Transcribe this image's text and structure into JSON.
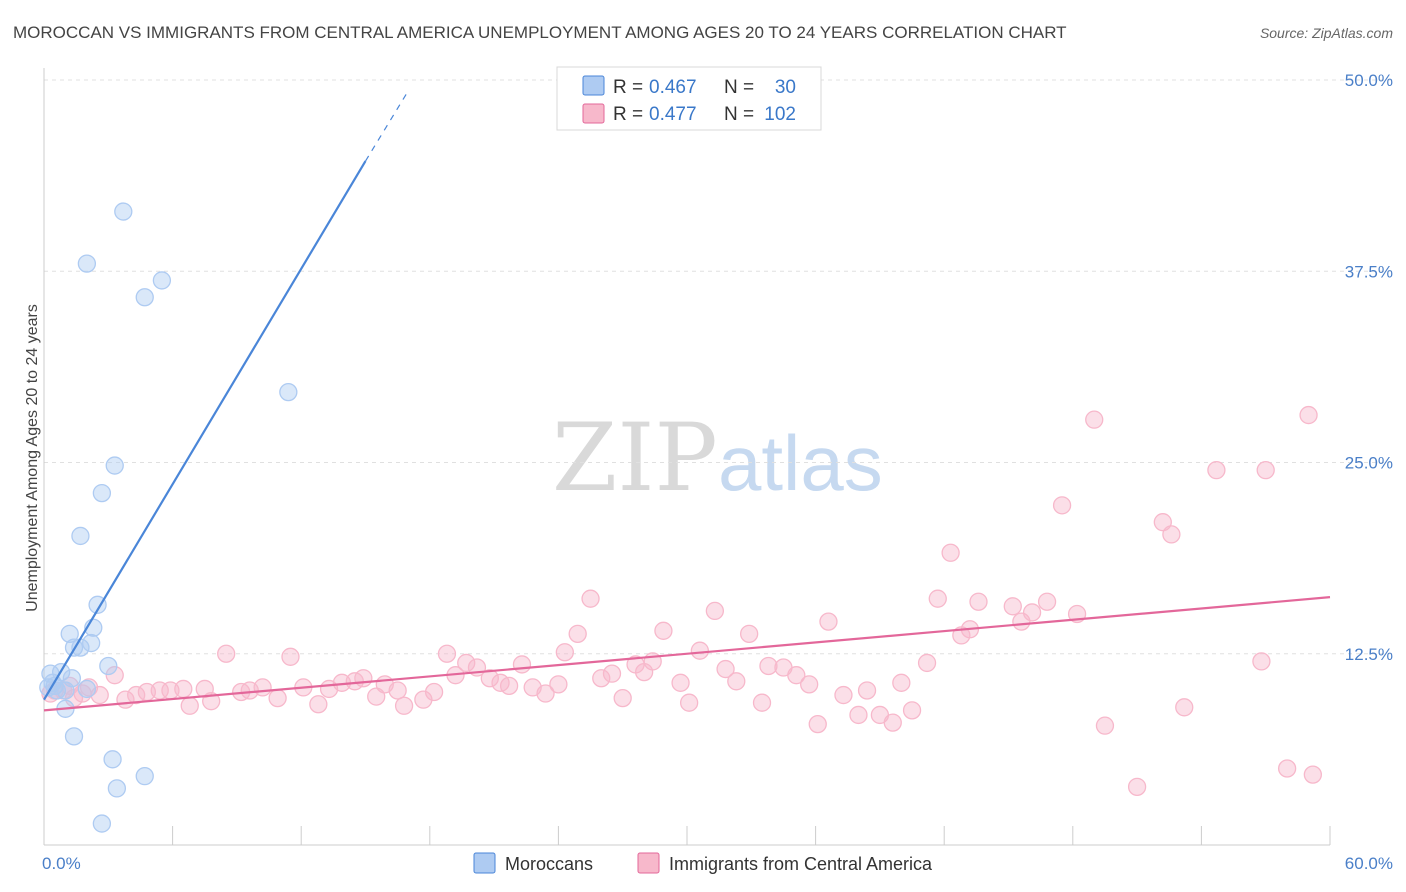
{
  "title": "MOROCCAN VS IMMIGRANTS FROM CENTRAL AMERICA UNEMPLOYMENT AMONG AGES 20 TO 24 YEARS CORRELATION CHART",
  "source": "Source: ZipAtlas.com",
  "watermark": {
    "zip": "ZIP",
    "atlas": "atlas"
  },
  "legend_top": {
    "rows": [
      {
        "r_label": "R = ",
        "r_value": "0.467",
        "n_label": "N = ",
        "n_value": "30",
        "color": "#aecbf2"
      },
      {
        "r_label": "R = ",
        "r_value": "0.477",
        "n_label": "N = ",
        "n_value": "102",
        "color": "#f7b8cb"
      }
    ]
  },
  "legend_bottom": {
    "items": [
      {
        "label": "Moroccans",
        "color": "#aecbf2"
      },
      {
        "label": "Immigrants from Central America",
        "color": "#f7b8cb"
      }
    ]
  },
  "chart_data": {
    "type": "scatter",
    "title": "MOROCCAN VS IMMIGRANTS FROM CENTRAL AMERICA UNEMPLOYMENT AMONG AGES 20 TO 24 YEARS CORRELATION CHART",
    "xlabel": "",
    "ylabel": "Unemployment Among Ages 20 to 24 years",
    "xlim": [
      0,
      60
    ],
    "ylim": [
      0,
      50
    ],
    "x_tick_labels": [
      {
        "value": 0,
        "label": "0.0%"
      },
      {
        "value": 60,
        "label": "60.0%"
      }
    ],
    "y_tick_labels": [
      {
        "value": 12.5,
        "label": "12.5%"
      },
      {
        "value": 25,
        "label": "25.0%"
      },
      {
        "value": 37.5,
        "label": "37.5%"
      },
      {
        "value": 50,
        "label": "50.0%"
      }
    ],
    "series": [
      {
        "name": "Moroccans",
        "color": "#4a86d8",
        "fill": "#aecbf2",
        "points": [
          [
            0.2,
            10.3
          ],
          [
            0.3,
            11.2
          ],
          [
            0.4,
            10.6
          ],
          [
            0.5,
            10.4
          ],
          [
            0.6,
            10.1
          ],
          [
            0.8,
            11.3
          ],
          [
            1.0,
            10.1
          ],
          [
            1.0,
            8.9
          ],
          [
            1.2,
            13.8
          ],
          [
            1.3,
            10.9
          ],
          [
            1.4,
            12.9
          ],
          [
            1.4,
            7.1
          ],
          [
            1.7,
            20.2
          ],
          [
            1.7,
            12.9
          ],
          [
            2.0,
            38.0
          ],
          [
            2.0,
            10.2
          ],
          [
            2.2,
            13.2
          ],
          [
            2.3,
            14.2
          ],
          [
            2.5,
            15.7
          ],
          [
            2.7,
            1.4
          ],
          [
            2.7,
            23.0
          ],
          [
            3.0,
            11.7
          ],
          [
            3.2,
            5.6
          ],
          [
            3.3,
            24.8
          ],
          [
            3.4,
            3.7
          ],
          [
            3.7,
            41.4
          ],
          [
            4.7,
            4.5
          ],
          [
            4.7,
            35.8
          ],
          [
            5.5,
            36.9
          ],
          [
            11.4,
            29.6
          ]
        ],
        "trend": {
          "x0": 0,
          "y0": 9.5,
          "x1": 15.0,
          "y1": 44.7,
          "dash_to_x": 17.0,
          "dash_to_y": 49.3
        }
      },
      {
        "name": "Immigrants from Central America",
        "color": "#e3679a",
        "fill": "#f7b8cb",
        "points": [
          [
            0.3,
            9.9
          ],
          [
            0.5,
            10.1
          ],
          [
            0.9,
            10.1
          ],
          [
            1.2,
            10.4
          ],
          [
            1.4,
            9.6
          ],
          [
            1.8,
            9.9
          ],
          [
            2.1,
            10.3
          ],
          [
            2.6,
            9.8
          ],
          [
            3.3,
            11.1
          ],
          [
            3.8,
            9.5
          ],
          [
            4.3,
            9.8
          ],
          [
            4.8,
            10.0
          ],
          [
            5.4,
            10.1
          ],
          [
            5.9,
            10.1
          ],
          [
            6.5,
            10.2
          ],
          [
            6.8,
            9.1
          ],
          [
            7.5,
            10.2
          ],
          [
            7.8,
            9.4
          ],
          [
            8.5,
            12.5
          ],
          [
            9.2,
            10.0
          ],
          [
            9.6,
            10.1
          ],
          [
            10.2,
            10.3
          ],
          [
            10.9,
            9.6
          ],
          [
            11.5,
            12.3
          ],
          [
            12.1,
            10.3
          ],
          [
            12.8,
            9.2
          ],
          [
            13.3,
            10.2
          ],
          [
            13.9,
            10.6
          ],
          [
            14.5,
            10.7
          ],
          [
            14.9,
            10.9
          ],
          [
            15.5,
            9.7
          ],
          [
            15.9,
            10.5
          ],
          [
            16.5,
            10.1
          ],
          [
            16.8,
            9.1
          ],
          [
            17.7,
            9.5
          ],
          [
            18.2,
            10.0
          ],
          [
            18.8,
            12.5
          ],
          [
            19.2,
            11.1
          ],
          [
            19.7,
            11.9
          ],
          [
            20.2,
            11.6
          ],
          [
            20.8,
            10.9
          ],
          [
            21.3,
            10.6
          ],
          [
            21.7,
            10.4
          ],
          [
            22.3,
            11.8
          ],
          [
            22.8,
            10.3
          ],
          [
            23.4,
            9.9
          ],
          [
            24.0,
            10.5
          ],
          [
            24.3,
            12.6
          ],
          [
            24.9,
            13.8
          ],
          [
            25.5,
            16.1
          ],
          [
            26.0,
            10.9
          ],
          [
            26.5,
            11.2
          ],
          [
            27.0,
            9.6
          ],
          [
            27.6,
            11.8
          ],
          [
            28.0,
            11.3
          ],
          [
            28.4,
            12.0
          ],
          [
            28.9,
            14.0
          ],
          [
            29.7,
            10.6
          ],
          [
            30.1,
            9.3
          ],
          [
            30.6,
            12.7
          ],
          [
            31.3,
            15.3
          ],
          [
            31.8,
            11.5
          ],
          [
            32.3,
            10.7
          ],
          [
            32.9,
            13.8
          ],
          [
            33.5,
            9.3
          ],
          [
            33.8,
            11.7
          ],
          [
            34.5,
            11.6
          ],
          [
            35.1,
            11.1
          ],
          [
            35.7,
            10.5
          ],
          [
            36.1,
            7.9
          ],
          [
            36.6,
            14.6
          ],
          [
            37.3,
            9.8
          ],
          [
            38.0,
            8.5
          ],
          [
            38.4,
            10.1
          ],
          [
            39.0,
            8.5
          ],
          [
            39.6,
            8.0
          ],
          [
            40.0,
            10.6
          ],
          [
            40.5,
            8.8
          ],
          [
            41.2,
            11.9
          ],
          [
            41.7,
            16.1
          ],
          [
            42.3,
            19.1
          ],
          [
            42.8,
            13.7
          ],
          [
            43.2,
            14.1
          ],
          [
            43.6,
            15.9
          ],
          [
            45.2,
            15.6
          ],
          [
            45.6,
            14.6
          ],
          [
            46.1,
            15.2
          ],
          [
            46.8,
            15.9
          ],
          [
            47.5,
            22.2
          ],
          [
            48.2,
            15.1
          ],
          [
            49.0,
            27.8
          ],
          [
            49.5,
            7.8
          ],
          [
            51.0,
            3.8
          ],
          [
            52.2,
            21.1
          ],
          [
            52.6,
            20.3
          ],
          [
            53.2,
            9.0
          ],
          [
            54.7,
            24.5
          ],
          [
            56.8,
            12.0
          ],
          [
            57.0,
            24.5
          ],
          [
            58.0,
            5.0
          ],
          [
            59.0,
            28.1
          ],
          [
            59.2,
            4.6
          ]
        ],
        "trend": {
          "x0": 0,
          "y0": 8.8,
          "x1": 60,
          "y1": 16.2
        }
      }
    ]
  }
}
